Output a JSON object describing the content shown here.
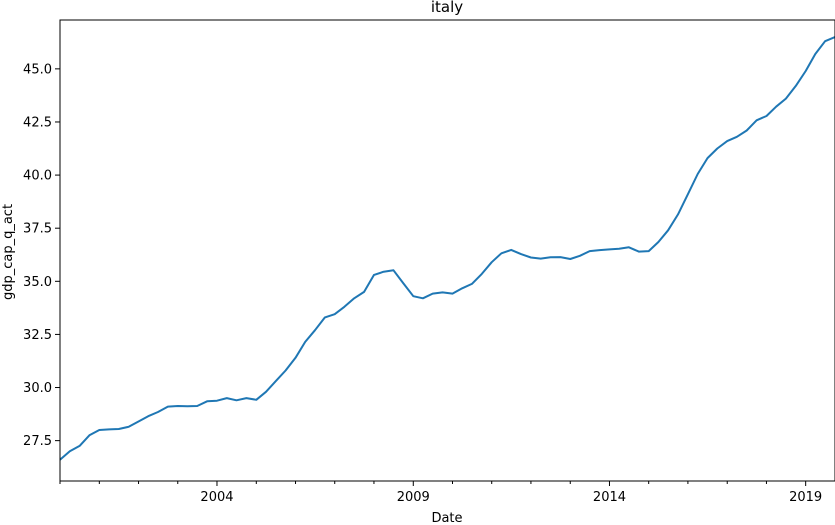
{
  "chart_data": {
    "type": "line",
    "title": "italy",
    "xlabel": "Date",
    "ylabel": "gdp_cap_q_act",
    "x_ticks": [
      "2004",
      "2009",
      "2014",
      "2019"
    ],
    "y_ticks": [
      "27.5",
      "30.0",
      "32.5",
      "35.0",
      "37.5",
      "40.0",
      "42.5",
      "45.0"
    ],
    "xlim": [
      "2000-01-01",
      "2019-10-01"
    ],
    "ylim": [
      25.6,
      47.3
    ],
    "grid": false,
    "line_color": "#1f77b4",
    "series": [
      {
        "x": [
          "2000-01-01",
          "2000-04-01",
          "2000-07-01",
          "2000-10-01",
          "2001-01-01",
          "2001-04-01",
          "2001-07-01",
          "2001-10-01",
          "2002-01-01",
          "2002-04-01",
          "2002-07-01",
          "2002-10-01",
          "2003-01-01",
          "2003-04-01",
          "2003-07-01",
          "2003-10-01",
          "2004-01-01",
          "2004-04-01",
          "2004-07-01",
          "2004-10-01",
          "2005-01-01",
          "2005-04-01",
          "2005-07-01",
          "2005-10-01",
          "2006-01-01",
          "2006-04-01",
          "2006-07-01",
          "2006-10-01",
          "2007-01-01",
          "2007-04-01",
          "2007-07-01",
          "2007-10-01",
          "2008-01-01",
          "2008-04-01",
          "2008-07-01",
          "2008-10-01",
          "2009-01-01",
          "2009-04-01",
          "2009-07-01",
          "2009-10-01",
          "2010-01-01",
          "2010-04-01",
          "2010-07-01",
          "2010-10-01",
          "2011-01-01",
          "2011-04-01",
          "2011-07-01",
          "2011-10-01",
          "2012-01-01",
          "2012-04-01",
          "2012-07-01",
          "2012-10-01",
          "2013-01-01",
          "2013-04-01",
          "2013-07-01",
          "2013-10-01",
          "2014-01-01",
          "2014-04-01",
          "2014-07-01",
          "2014-10-01",
          "2015-01-01",
          "2015-04-01",
          "2015-07-01",
          "2015-10-01",
          "2016-01-01",
          "2016-04-01",
          "2016-07-01",
          "2016-10-01",
          "2017-01-01",
          "2017-04-01",
          "2017-07-01",
          "2017-10-01",
          "2018-01-01",
          "2018-04-01",
          "2018-07-01",
          "2018-10-01",
          "2019-01-01",
          "2019-04-01",
          "2019-07-01",
          "2019-10-01"
        ],
        "values": [
          26.6,
          27.0,
          27.25,
          27.75,
          28.0,
          28.03,
          28.05,
          28.15,
          28.4,
          28.65,
          28.85,
          29.1,
          29.13,
          29.12,
          29.13,
          29.35,
          29.38,
          29.5,
          29.4,
          29.5,
          29.42,
          29.8,
          30.3,
          30.8,
          31.4,
          32.15,
          32.7,
          33.3,
          33.45,
          33.8,
          34.2,
          34.5,
          35.3,
          35.45,
          35.52,
          34.9,
          34.3,
          34.2,
          34.42,
          34.48,
          34.42,
          34.67,
          34.88,
          35.35,
          35.9,
          36.32,
          36.48,
          36.28,
          36.12,
          36.07,
          36.13,
          36.14,
          36.05,
          36.2,
          36.42,
          36.47,
          36.5,
          36.53,
          36.6,
          36.4,
          36.42,
          36.85,
          37.4,
          38.15,
          39.1,
          40.05,
          40.8,
          41.25,
          41.6,
          41.8,
          42.1,
          42.58,
          42.78,
          43.22,
          43.6,
          44.2,
          44.9,
          45.7,
          46.3,
          46.5
        ]
      }
    ]
  }
}
